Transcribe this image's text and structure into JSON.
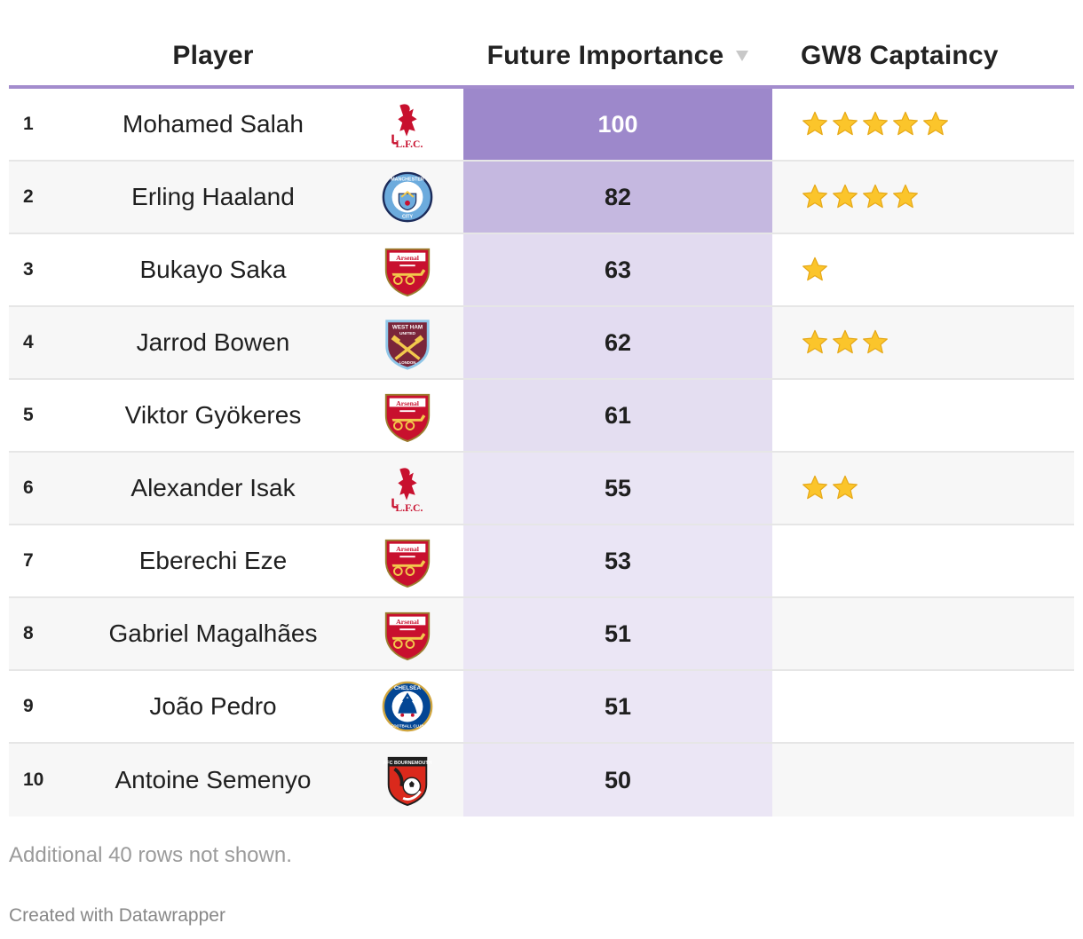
{
  "header": {
    "player_label": "Player",
    "fi_label": "Future Importance",
    "gw_label": "GW8 Captaincy"
  },
  "colors": {
    "accent": "#a38ccd",
    "heat_max": "#9d88cb",
    "heat_min": "#ebe6f5",
    "star": "#fbc52b"
  },
  "chart_data": {
    "type": "table",
    "columns": [
      "",
      "Player",
      "",
      "Future Importance",
      "GW8 Captaincy"
    ],
    "sorted_by": "Future Importance",
    "sort_direction": "descending",
    "rows": [
      {
        "rank": "1",
        "player": "Mohamed Salah",
        "club_icon": "liverpool-crest-icon",
        "future_importance": 100,
        "captaincy_stars": 5
      },
      {
        "rank": "2",
        "player": "Erling Haaland",
        "club_icon": "man-city-crest-icon",
        "future_importance": 82,
        "captaincy_stars": 4
      },
      {
        "rank": "3",
        "player": "Bukayo Saka",
        "club_icon": "arsenal-crest-icon",
        "future_importance": 63,
        "captaincy_stars": 1
      },
      {
        "rank": "4",
        "player": "Jarrod Bowen",
        "club_icon": "west-ham-crest-icon",
        "future_importance": 62,
        "captaincy_stars": 3
      },
      {
        "rank": "5",
        "player": "Viktor Gyökeres",
        "club_icon": "arsenal-crest-icon",
        "future_importance": 61,
        "captaincy_stars": 0
      },
      {
        "rank": "6",
        "player": "Alexander Isak",
        "club_icon": "liverpool-crest-icon",
        "future_importance": 55,
        "captaincy_stars": 2
      },
      {
        "rank": "7",
        "player": "Eberechi Eze",
        "club_icon": "arsenal-crest-icon",
        "future_importance": 53,
        "captaincy_stars": 0
      },
      {
        "rank": "8",
        "player": "Gabriel Magalhães",
        "club_icon": "arsenal-crest-icon",
        "future_importance": 51,
        "captaincy_stars": 0
      },
      {
        "rank": "9",
        "player": "João Pedro",
        "club_icon": "chelsea-crest-icon",
        "future_importance": 51,
        "captaincy_stars": 0
      },
      {
        "rank": "10",
        "player": "Antoine Semenyo",
        "club_icon": "bournemouth-crest-icon",
        "future_importance": 50,
        "captaincy_stars": 0
      }
    ]
  },
  "footer": {
    "note": "Additional 40 rows not shown.",
    "credit": "Created with Datawrapper"
  }
}
